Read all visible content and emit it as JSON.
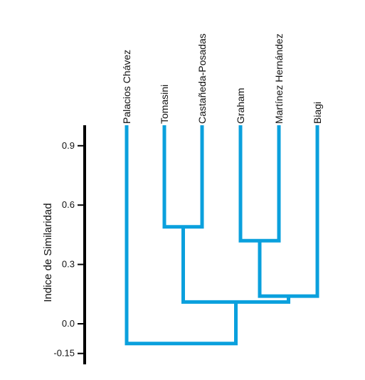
{
  "chart_data": {
    "type": "dendrogram",
    "title": "",
    "ylabel": "Indice de Similaridad",
    "yticks": [
      0.9,
      0.6,
      0.3,
      0.0,
      -0.15
    ],
    "ytick_labels": [
      "0.9",
      "0.6",
      "0.3",
      "0.0",
      "-0.15"
    ],
    "ylim": [
      -0.2,
      1.0
    ],
    "leaves": [
      "Palacios Chávez",
      "Tomasini",
      "Castañeda-Posadas",
      "Graham",
      "Martínez Hernández",
      "Biagi"
    ],
    "merges": [
      {
        "left": "Tomasini",
        "right": "Castañeda-Posadas",
        "similarity": 0.49
      },
      {
        "left": "Graham",
        "right": "Martínez Hernández",
        "similarity": 0.42
      },
      {
        "left": "Graham + Martínez Hernández",
        "right": "Biagi",
        "similarity": 0.14
      },
      {
        "left": "Tomasini + Castañeda-Posadas",
        "right": "Graham + Martínez Hernández + Biagi",
        "similarity": 0.11
      },
      {
        "left": "Palacios Chávez",
        "right": "Tomasini + Castañeda-Posadas + Graham + Martínez Hernández + Biagi",
        "similarity": -0.1
      }
    ],
    "colors": {
      "tree": "#0aa0dd",
      "axis": "#000000"
    }
  }
}
